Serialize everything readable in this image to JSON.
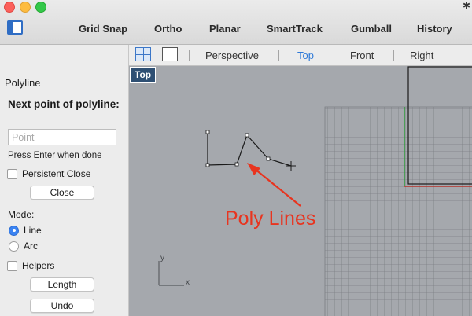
{
  "toolbar": {
    "items": [
      "Grid Snap",
      "Ortho",
      "Planar",
      "SmartTrack",
      "Gumball",
      "History"
    ],
    "accent": "#2f6dc4"
  },
  "command_panel": {
    "title": "Polyline",
    "prompt": "Next point of polyline:",
    "point_placeholder": "Point",
    "hint": "Press Enter when done",
    "persistent_close_label": "Persistent Close",
    "close_button": "Close",
    "mode_label": "Mode:",
    "mode_options": [
      {
        "label": "Line",
        "selected": true
      },
      {
        "label": "Arc",
        "selected": false
      }
    ],
    "helpers_label": "Helpers",
    "length_button": "Length",
    "undo_button": "Undo"
  },
  "viewport_tabs": {
    "tabs": [
      "Perspective",
      "Top",
      "Front",
      "Right"
    ],
    "active": "Top"
  },
  "viewport": {
    "label": "Top",
    "annotation": "Poly Lines",
    "axis_x": "x",
    "axis_y": "y",
    "background": "#a5a8ad",
    "annotation_color": "#e8341f"
  }
}
